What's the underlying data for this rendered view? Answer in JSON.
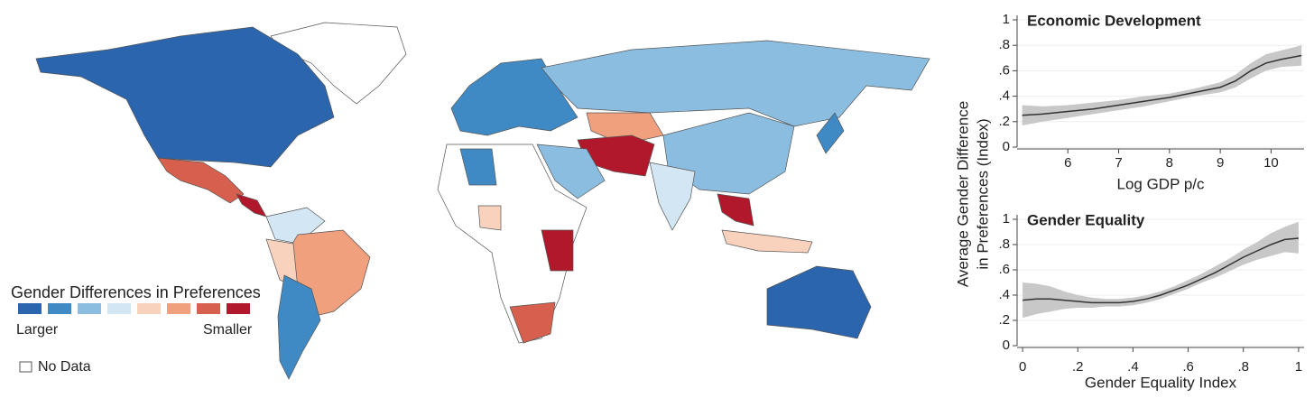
{
  "map": {
    "legend_title": "Gender Differences in Preferences",
    "colors": [
      "#2b65ad",
      "#3f8ac4",
      "#8bbde0",
      "#d3e6f3",
      "#f8d2bd",
      "#f0a07c",
      "#d6604d",
      "#b2182b"
    ],
    "low_label": "Larger",
    "high_label": "Smaller",
    "no_data_label": "No Data"
  },
  "y_label": [
    "Average Gender Difference",
    "in Preferences (Index)"
  ],
  "chart_data": [
    {
      "type": "line",
      "title": "Economic Development",
      "x_label": "Log GDP p/c",
      "x": [
        5.1,
        5.5,
        6,
        6.5,
        7,
        7.5,
        8,
        8.5,
        9,
        9.3,
        9.6,
        9.9,
        10.2,
        10.6
      ],
      "values": [
        0.25,
        0.26,
        0.28,
        0.3,
        0.33,
        0.36,
        0.39,
        0.43,
        0.47,
        0.52,
        0.6,
        0.66,
        0.69,
        0.72
      ],
      "band_lower": [
        0.17,
        0.2,
        0.23,
        0.26,
        0.29,
        0.32,
        0.36,
        0.4,
        0.43,
        0.47,
        0.54,
        0.6,
        0.63,
        0.64
      ],
      "band_upper": [
        0.33,
        0.32,
        0.33,
        0.35,
        0.37,
        0.4,
        0.42,
        0.46,
        0.51,
        0.57,
        0.66,
        0.73,
        0.76,
        0.8
      ],
      "color": "#333333",
      "band_color": "#c8c8c8",
      "xlim": [
        5,
        10.65
      ],
      "xticks": [
        6,
        7,
        8,
        9,
        10
      ],
      "ylim": [
        0,
        1
      ],
      "yticks": [
        0,
        {
          "value": 0.2,
          "label": ".2"
        },
        {
          "value": 0.4,
          "label": ".4"
        },
        {
          "value": 0.6,
          "label": ".6"
        },
        {
          "value": 0.8,
          "label": ".8"
        },
        1
      ],
      "grid": true
    },
    {
      "type": "line",
      "title": "Gender Equality",
      "x_label": "Gender Equality Index",
      "x": [
        0,
        0.05,
        0.1,
        0.15,
        0.2,
        0.25,
        0.3,
        0.35,
        0.4,
        0.45,
        0.5,
        0.55,
        0.6,
        0.65,
        0.7,
        0.75,
        0.8,
        0.85,
        0.9,
        0.95,
        1
      ],
      "values": [
        0.36,
        0.37,
        0.37,
        0.36,
        0.35,
        0.34,
        0.34,
        0.34,
        0.35,
        0.37,
        0.4,
        0.44,
        0.48,
        0.53,
        0.58,
        0.64,
        0.7,
        0.75,
        0.8,
        0.84,
        0.85
      ],
      "band_lower": [
        0.22,
        0.25,
        0.27,
        0.29,
        0.3,
        0.3,
        0.31,
        0.31,
        0.32,
        0.34,
        0.37,
        0.41,
        0.45,
        0.5,
        0.54,
        0.59,
        0.64,
        0.68,
        0.71,
        0.74,
        0.73
      ],
      "band_upper": [
        0.5,
        0.49,
        0.47,
        0.43,
        0.4,
        0.38,
        0.37,
        0.37,
        0.38,
        0.4,
        0.43,
        0.47,
        0.52,
        0.57,
        0.63,
        0.69,
        0.76,
        0.82,
        0.89,
        0.94,
        0.98
      ],
      "color": "#333333",
      "band_color": "#c8c8c8",
      "xlim": [
        -0.02,
        1.02
      ],
      "xticks": [
        0,
        {
          "value": 0.2,
          "label": ".2"
        },
        {
          "value": 0.4,
          "label": ".4"
        },
        {
          "value": 0.6,
          "label": ".6"
        },
        {
          "value": 0.8,
          "label": ".8"
        },
        1
      ],
      "ylim": [
        0,
        1
      ],
      "yticks": [
        0,
        {
          "value": 0.2,
          "label": ".2"
        },
        {
          "value": 0.4,
          "label": ".4"
        },
        {
          "value": 0.6,
          "label": ".6"
        },
        {
          "value": 0.8,
          "label": ".8"
        },
        1
      ],
      "grid": true
    }
  ]
}
